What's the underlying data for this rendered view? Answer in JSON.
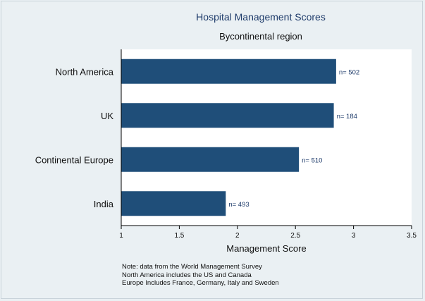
{
  "chart_data": {
    "type": "bar",
    "orientation": "horizontal",
    "title": "Hospital Management Scores",
    "subtitle": "Bycontinental region",
    "xlabel": "Management Score",
    "ylabel": "",
    "categories": [
      "North America",
      "UK",
      "Continental Europe",
      "India"
    ],
    "values": [
      2.85,
      2.83,
      2.53,
      1.9
    ],
    "data_labels": [
      "n= 502",
      "n= 184",
      "n= 510",
      "n= 493"
    ],
    "xlim": [
      1,
      3.5
    ],
    "xticks": [
      "1",
      "1.5",
      "2",
      "2.5",
      "3",
      "3.5"
    ],
    "bar_color": "#1f4e79",
    "label_color": "#1f3c6b",
    "grid": false,
    "legend": "none"
  },
  "notes": [
    "Note: data from the World Management Survey",
    "North America includes the US and Canada",
    "Europe Includes France, Germany, Italy and Sweden"
  ]
}
